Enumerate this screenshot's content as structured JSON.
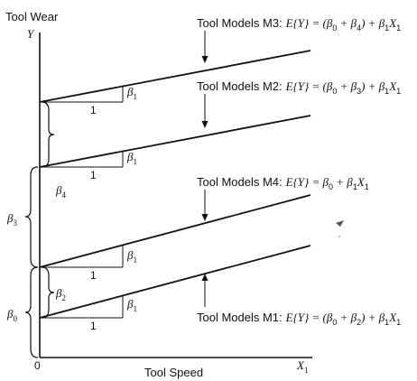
{
  "axes": {
    "y_title": "Tool Wear",
    "y_symbol": "Y",
    "x_title": "Tool Speed",
    "x_symbol": "X",
    "x_subscript": "1",
    "origin": "0"
  },
  "lines": [
    {
      "id": "m3",
      "prefix": "Tool Models M3:",
      "expr": "E{Y} = (β",
      "s1": "0",
      "mid": " + β",
      "s2": "4",
      "tail": ") + β",
      "s3": "1",
      "var": "X",
      "s4": "1"
    },
    {
      "id": "m2",
      "prefix": "Tool Models M2:",
      "expr": "E{Y} = (β",
      "s1": "0",
      "mid": " + β",
      "s2": "3",
      "tail": ") + β",
      "s3": "1",
      "var": "X",
      "s4": "1"
    },
    {
      "id": "m4",
      "prefix": "Tool Models M4:",
      "expr": "E{Y} = β",
      "s1": "0",
      "mid": " + β",
      "s2": "1",
      "var": "X",
      "s3": "1"
    },
    {
      "id": "m1",
      "prefix": "Tool Models M1:",
      "expr": "E{Y} = (β",
      "s1": "0",
      "mid": " + β",
      "s2": "2",
      "tail": ") + β",
      "s3": "1",
      "var": "X",
      "s4": "1"
    }
  ],
  "slope": {
    "run": "1",
    "rise": "β",
    "rise_sub": "1"
  },
  "braces": [
    {
      "symbol": "β",
      "sub": "4"
    },
    {
      "symbol": "β",
      "sub": "3"
    },
    {
      "symbol": "β",
      "sub": "2"
    },
    {
      "symbol": "β",
      "sub": "0"
    }
  ]
}
